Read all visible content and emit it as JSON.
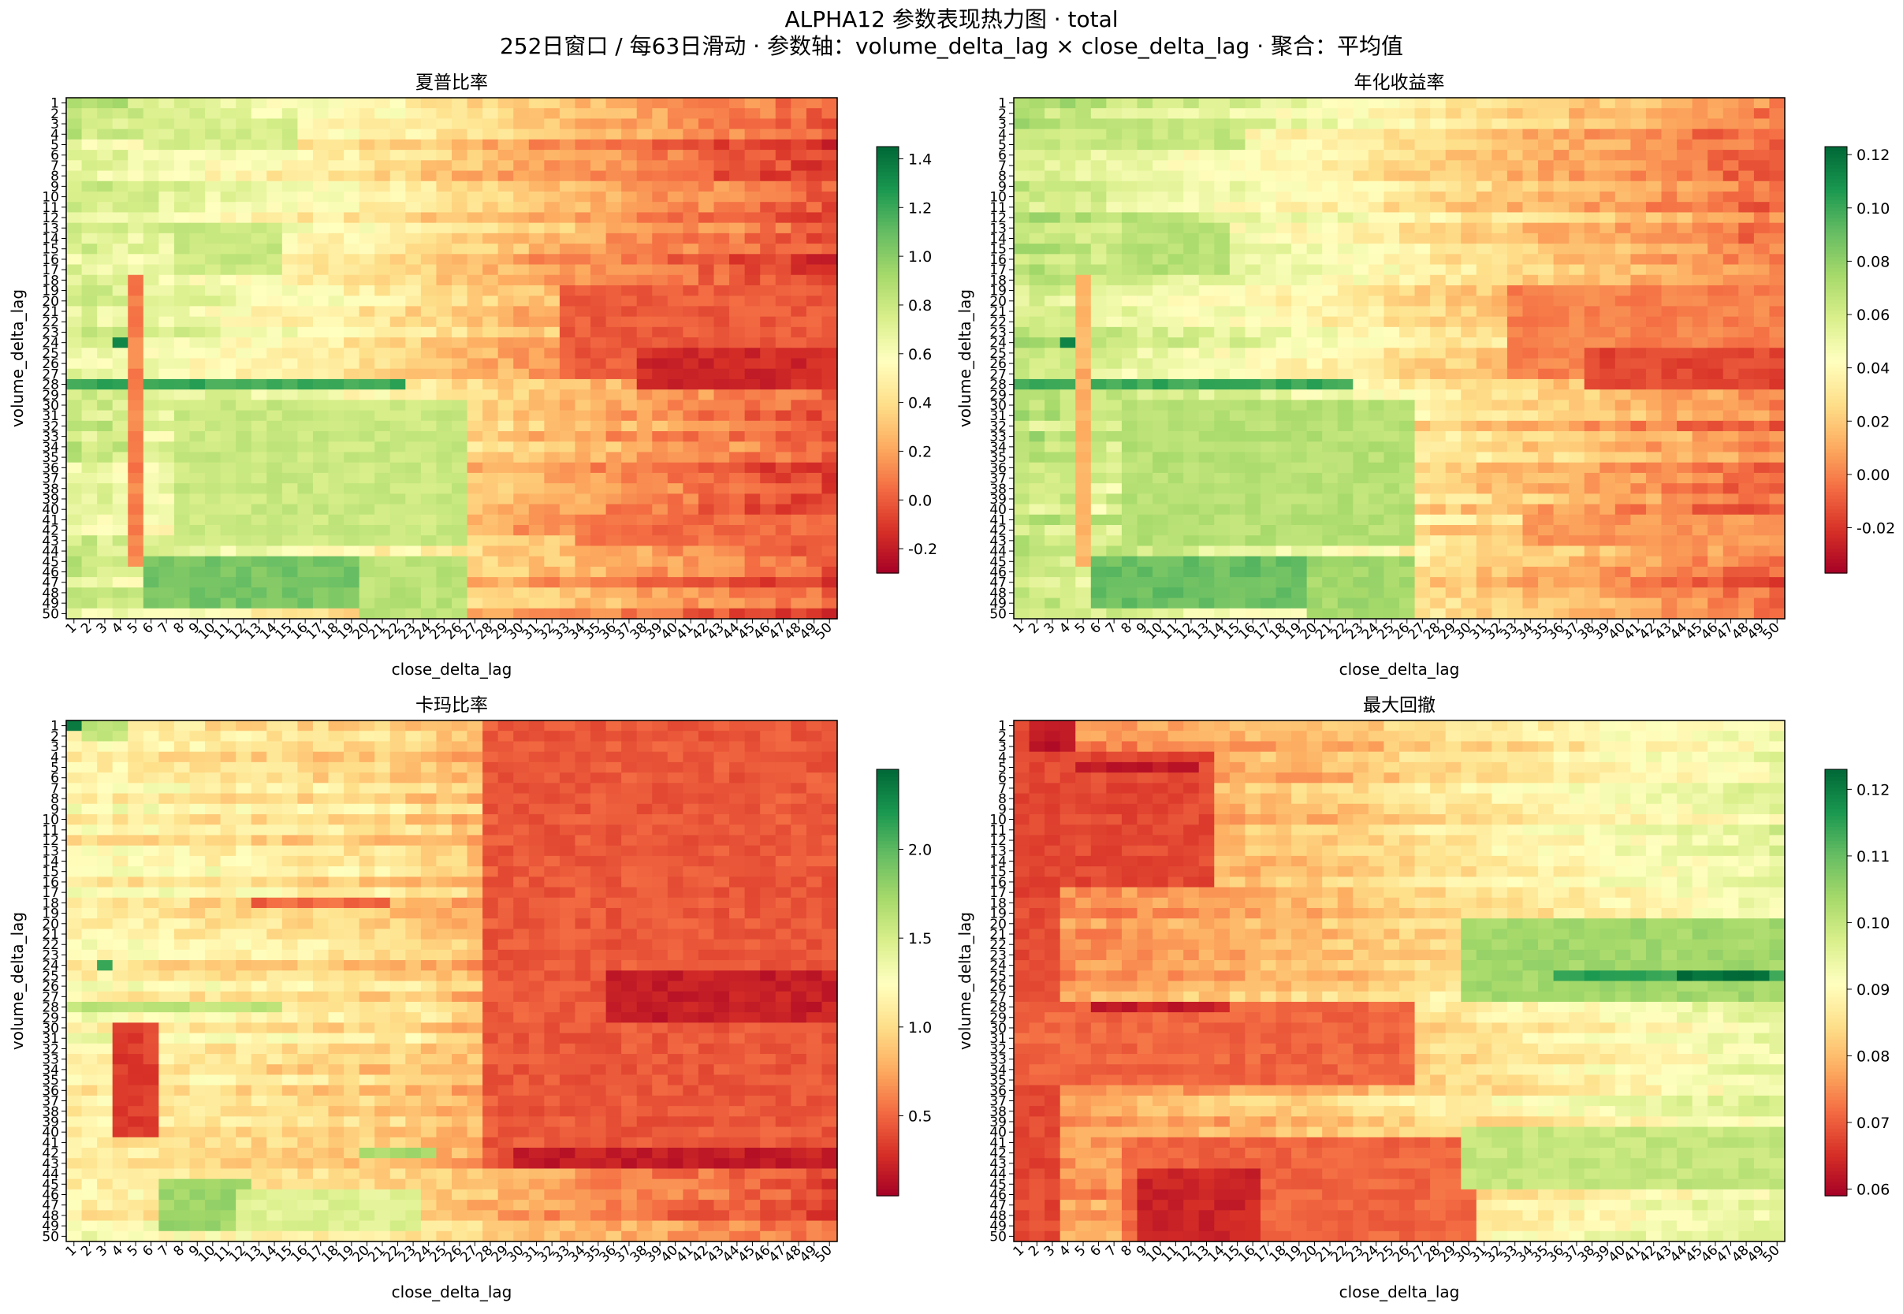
{
  "figure": {
    "title": "ALPHA12 参数表现热力图 · total",
    "subtitle": "252日窗口 / 每63日滑动 · 参数轴：volume_delta_lag × close_delta_lag · 聚合：平均值"
  },
  "colormap": {
    "name": "RdYlGn",
    "stops": [
      "#a50026",
      "#d73027",
      "#f46d43",
      "#fdae61",
      "#fee08b",
      "#ffffbf",
      "#d9ef8b",
      "#a6d96a",
      "#66bd63",
      "#1a9850",
      "#006837"
    ]
  },
  "chart_data": [
    {
      "type": "heatmap",
      "title": "夏普比率",
      "xlabel": "close_delta_lag",
      "ylabel": "volume_delta_lag",
      "x_range": [
        1,
        50
      ],
      "y_range": [
        1,
        50
      ],
      "colorbar": {
        "min": -0.3,
        "max": 1.45,
        "ticks": [
          -0.2,
          0.0,
          0.2,
          0.4,
          0.6,
          0.8,
          1.0,
          1.2,
          1.4
        ],
        "tick_labels": [
          "-0.2",
          "0.0",
          "0.2",
          "0.4",
          "0.6",
          "0.8",
          "1.0",
          "1.2",
          "1.4"
        ]
      },
      "base": 0.4,
      "left_gain": 0.35,
      "right_loss": -0.45,
      "noise": 0.18,
      "bands": [
        {
          "rows": [
            1,
            1
          ],
          "cols": [
            1,
            4
          ],
          "value": 0.9
        },
        {
          "rows": [
            3,
            5
          ],
          "cols": [
            6,
            15
          ],
          "value": 0.75
        },
        {
          "rows": [
            13,
            17
          ],
          "cols": [
            8,
            14
          ],
          "value": 0.8
        },
        {
          "rows": [
            19,
            27
          ],
          "cols": [
            33,
            50
          ],
          "value": 0.0
        },
        {
          "rows": [
            25,
            28
          ],
          "cols": [
            38,
            50
          ],
          "value": -0.15
        },
        {
          "rows": [
            28,
            28
          ],
          "cols": [
            1,
            22
          ],
          "value": 1.2
        },
        {
          "rows": [
            24,
            24
          ],
          "cols": [
            4,
            4
          ],
          "value": 1.3
        },
        {
          "rows": [
            30,
            43
          ],
          "cols": [
            8,
            26
          ],
          "value": 0.8
        },
        {
          "rows": [
            45,
            49
          ],
          "cols": [
            6,
            20
          ],
          "value": 1.05
        },
        {
          "rows": [
            45,
            50
          ],
          "cols": [
            20,
            26
          ],
          "value": 0.85
        },
        {
          "rows": [
            18,
            45
          ],
          "cols": [
            5,
            5
          ],
          "value": 0.1
        },
        {
          "rows": [
            41,
            43
          ],
          "cols": [
            34,
            50
          ],
          "value": 0.05
        }
      ]
    },
    {
      "type": "heatmap",
      "title": "年化收益率",
      "xlabel": "close_delta_lag",
      "ylabel": "volume_delta_lag",
      "x_range": [
        1,
        50
      ],
      "y_range": [
        1,
        50
      ],
      "colorbar": {
        "min": -0.037,
        "max": 0.123,
        "ticks": [
          -0.02,
          0.0,
          0.02,
          0.04,
          0.06,
          0.08,
          0.1,
          0.12
        ],
        "tick_labels": [
          "-0.02",
          "0.00",
          "0.02",
          "0.04",
          "0.06",
          "0.08",
          "0.10",
          "0.12"
        ]
      },
      "base": 0.035,
      "left_gain": 0.03,
      "right_loss": -0.04,
      "noise": 0.016,
      "bands": [
        {
          "rows": [
            1,
            1
          ],
          "cols": [
            1,
            4
          ],
          "value": 0.075
        },
        {
          "rows": [
            3,
            5
          ],
          "cols": [
            6,
            15
          ],
          "value": 0.065
        },
        {
          "rows": [
            13,
            17
          ],
          "cols": [
            8,
            14
          ],
          "value": 0.07
        },
        {
          "rows": [
            19,
            27
          ],
          "cols": [
            33,
            50
          ],
          "value": 0.0
        },
        {
          "rows": [
            25,
            28
          ],
          "cols": [
            38,
            50
          ],
          "value": -0.015
        },
        {
          "rows": [
            28,
            28
          ],
          "cols": [
            1,
            22
          ],
          "value": 0.1
        },
        {
          "rows": [
            24,
            24
          ],
          "cols": [
            4,
            4
          ],
          "value": 0.11
        },
        {
          "rows": [
            30,
            43
          ],
          "cols": [
            8,
            26
          ],
          "value": 0.07
        },
        {
          "rows": [
            45,
            49
          ],
          "cols": [
            6,
            20
          ],
          "value": 0.09
        },
        {
          "rows": [
            45,
            50
          ],
          "cols": [
            20,
            26
          ],
          "value": 0.075
        },
        {
          "rows": [
            18,
            45
          ],
          "cols": [
            5,
            5
          ],
          "value": 0.012
        },
        {
          "rows": [
            41,
            43
          ],
          "cols": [
            34,
            50
          ],
          "value": 0.005
        }
      ]
    },
    {
      "type": "heatmap",
      "title": "卡玛比率",
      "xlabel": "close_delta_lag",
      "ylabel": "volume_delta_lag",
      "x_range": [
        1,
        50
      ],
      "y_range": [
        1,
        50
      ],
      "colorbar": {
        "min": 0.05,
        "max": 2.45,
        "ticks": [
          0.5,
          1.0,
          1.5,
          2.0
        ],
        "tick_labels": [
          "0.5",
          "1.0",
          "1.5",
          "2.0"
        ]
      },
      "base": 0.95,
      "left_gain": 0.25,
      "right_loss": -0.55,
      "noise": 0.25,
      "bands": [
        {
          "rows": [
            1,
            1
          ],
          "cols": [
            1,
            1
          ],
          "value": 2.3
        },
        {
          "rows": [
            1,
            2
          ],
          "cols": [
            2,
            4
          ],
          "value": 1.6
        },
        {
          "rows": [
            1,
            43
          ],
          "cols": [
            28,
            50
          ],
          "value": 0.45
        },
        {
          "rows": [
            25,
            29
          ],
          "cols": [
            36,
            50
          ],
          "value": 0.2
        },
        {
          "rows": [
            42,
            43
          ],
          "cols": [
            30,
            50
          ],
          "value": 0.2
        },
        {
          "rows": [
            28,
            28
          ],
          "cols": [
            1,
            14
          ],
          "value": 1.6
        },
        {
          "rows": [
            24,
            24
          ],
          "cols": [
            3,
            3
          ],
          "value": 2.1
        },
        {
          "rows": [
            30,
            40
          ],
          "cols": [
            4,
            6
          ],
          "value": 0.35
        },
        {
          "rows": [
            45,
            49
          ],
          "cols": [
            7,
            12
          ],
          "value": 1.75
        },
        {
          "rows": [
            46,
            49
          ],
          "cols": [
            12,
            23
          ],
          "value": 1.45
        },
        {
          "rows": [
            42,
            42
          ],
          "cols": [
            20,
            24
          ],
          "value": 1.7
        },
        {
          "rows": [
            18,
            18
          ],
          "cols": [
            13,
            21
          ],
          "value": 0.5
        }
      ]
    },
    {
      "type": "heatmap",
      "title": "最大回撤",
      "xlabel": "close_delta_lag",
      "ylabel": "volume_delta_lag",
      "x_range": [
        1,
        50
      ],
      "y_range": [
        1,
        50
      ],
      "colorbar": {
        "min": 0.059,
        "max": 0.123,
        "ticks": [
          0.06,
          0.07,
          0.08,
          0.09,
          0.1,
          0.11,
          0.12
        ],
        "tick_labels": [
          "0.06",
          "0.07",
          "0.08",
          "0.09",
          "0.10",
          "0.11",
          "0.12"
        ]
      },
      "base": 0.083,
      "left_gain": -0.008,
      "right_loss": 0.012,
      "noise": 0.006,
      "bands": [
        {
          "rows": [
            1,
            50
          ],
          "cols": [
            1,
            3
          ],
          "value": 0.068
        },
        {
          "rows": [
            1,
            3
          ],
          "cols": [
            2,
            4
          ],
          "value": 0.062
        },
        {
          "rows": [
            4,
            16
          ],
          "cols": [
            4,
            13
          ],
          "value": 0.068
        },
        {
          "rows": [
            5,
            5
          ],
          "cols": [
            5,
            12
          ],
          "value": 0.062
        },
        {
          "rows": [
            28,
            35
          ],
          "cols": [
            1,
            26
          ],
          "value": 0.071
        },
        {
          "rows": [
            28,
            28
          ],
          "cols": [
            6,
            14
          ],
          "value": 0.063
        },
        {
          "rows": [
            41,
            50
          ],
          "cols": [
            8,
            30
          ],
          "value": 0.071
        },
        {
          "rows": [
            44,
            50
          ],
          "cols": [
            9,
            16
          ],
          "value": 0.064
        },
        {
          "rows": [
            20,
            27
          ],
          "cols": [
            30,
            50
          ],
          "value": 0.104
        },
        {
          "rows": [
            25,
            25
          ],
          "cols": [
            36,
            50
          ],
          "value": 0.115
        },
        {
          "rows": [
            25,
            25
          ],
          "cols": [
            44,
            49
          ],
          "value": 0.122
        },
        {
          "rows": [
            40,
            45
          ],
          "cols": [
            30,
            50
          ],
          "value": 0.1
        },
        {
          "rows": [
            1,
            1
          ],
          "cols": [
            40,
            50
          ],
          "value": 0.09
        }
      ]
    }
  ]
}
